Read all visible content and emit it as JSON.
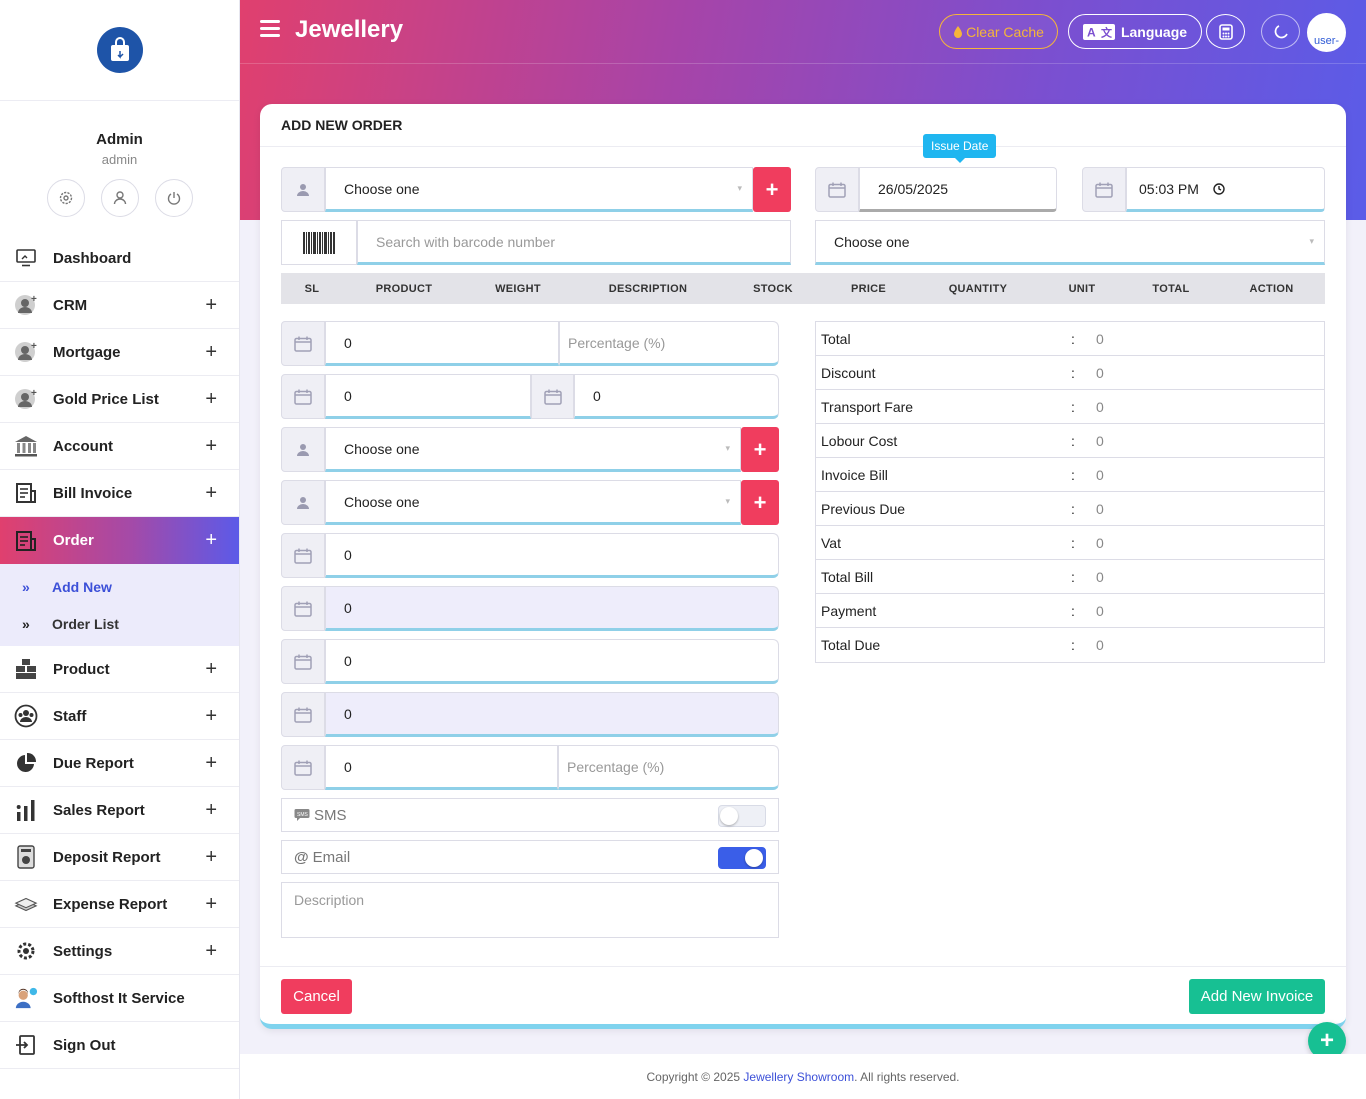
{
  "header": {
    "title": "Jewellery",
    "clear_cache": "Clear Cache",
    "language": "Language",
    "avatar_alt": "user-"
  },
  "profile": {
    "name": "Admin",
    "role": "admin"
  },
  "sidebar": {
    "items": [
      {
        "label": "Dashboard",
        "icon": "monitor-icon",
        "expandable": false
      },
      {
        "label": "CRM",
        "icon": "user-plus-icon",
        "expandable": true
      },
      {
        "label": "Mortgage",
        "icon": "user-plus-icon",
        "expandable": true
      },
      {
        "label": "Gold Price List",
        "icon": "user-plus-icon",
        "expandable": true
      },
      {
        "label": "Account",
        "icon": "bank-icon",
        "expandable": true
      },
      {
        "label": "Bill Invoice",
        "icon": "invoice-icon",
        "expandable": true
      },
      {
        "label": "Order",
        "icon": "order-icon",
        "expandable": true,
        "active": true
      },
      {
        "label": "Product",
        "icon": "boxes-icon",
        "expandable": true
      },
      {
        "label": "Staff",
        "icon": "staff-icon",
        "expandable": true
      },
      {
        "label": "Due Report",
        "icon": "pie-chart-icon",
        "expandable": true
      },
      {
        "label": "Sales Report",
        "icon": "bar-chart-icon",
        "expandable": true
      },
      {
        "label": "Deposit Report",
        "icon": "deposit-icon",
        "expandable": true
      },
      {
        "label": "Expense Report",
        "icon": "money-icon",
        "expandable": true
      },
      {
        "label": "Settings",
        "icon": "gear-icon",
        "expandable": true
      },
      {
        "label": "Softhost It Service",
        "icon": "support-agent-icon",
        "expandable": false
      },
      {
        "label": "Sign Out",
        "icon": "sign-out-icon",
        "expandable": false
      }
    ],
    "submenu": [
      {
        "label": "Add New",
        "current": true
      },
      {
        "label": "Order List",
        "current": false
      }
    ]
  },
  "form": {
    "title": "ADD NEW ORDER",
    "customer_select": "Choose one",
    "issue_date_tooltip": "Issue Date",
    "issue_date": "26/05/2025",
    "issue_time": "05:03 PM",
    "barcode_placeholder": "Search with barcode number",
    "right_select": "Choose one",
    "table_headers": [
      "SL",
      "PRODUCT",
      "WEIGHT",
      "DESCRIPTION",
      "STOCK",
      "PRICE",
      "QUANTITY",
      "UNIT",
      "TOTAL",
      "ACTION"
    ],
    "discount_value": "0",
    "discount_placeholder": "Percentage (%)",
    "transport_fare": "0",
    "labour_cost": "0",
    "select_a": "Choose one",
    "select_b": "Choose one",
    "field_1": "0",
    "field_2": "0",
    "field_3": "0",
    "field_4": "0",
    "vat_value": "0",
    "vat_placeholder": "Percentage (%)",
    "sms_label": "SMS",
    "sms_enabled": false,
    "email_label": "Email",
    "email_enabled": true,
    "description_placeholder": "Description",
    "cancel": "Cancel",
    "submit": "Add New Invoice"
  },
  "summary": [
    {
      "label": "Total",
      "value": "0"
    },
    {
      "label": "Discount",
      "value": "0"
    },
    {
      "label": "Transport Fare",
      "value": "0"
    },
    {
      "label": "Lobour Cost",
      "value": "0"
    },
    {
      "label": "Invoice Bill",
      "value": "0"
    },
    {
      "label": "Previous Due",
      "value": "0"
    },
    {
      "label": "Vat",
      "value": "0"
    },
    {
      "label": "Total Bill",
      "value": "0"
    },
    {
      "label": "Payment",
      "value": "0"
    },
    {
      "label": "Total Due",
      "value": "0"
    }
  ],
  "footer": {
    "prefix": "Copyright © 2025 ",
    "brand": "Jewellery Showroom",
    "suffix": ". All rights reserved."
  },
  "colors": {
    "accent_red": "#f03d5e",
    "accent_green": "#17c093",
    "accent_blue": "#3a5ee8",
    "gradient_start": "#e0406e",
    "gradient_end": "#5a5ce8"
  }
}
